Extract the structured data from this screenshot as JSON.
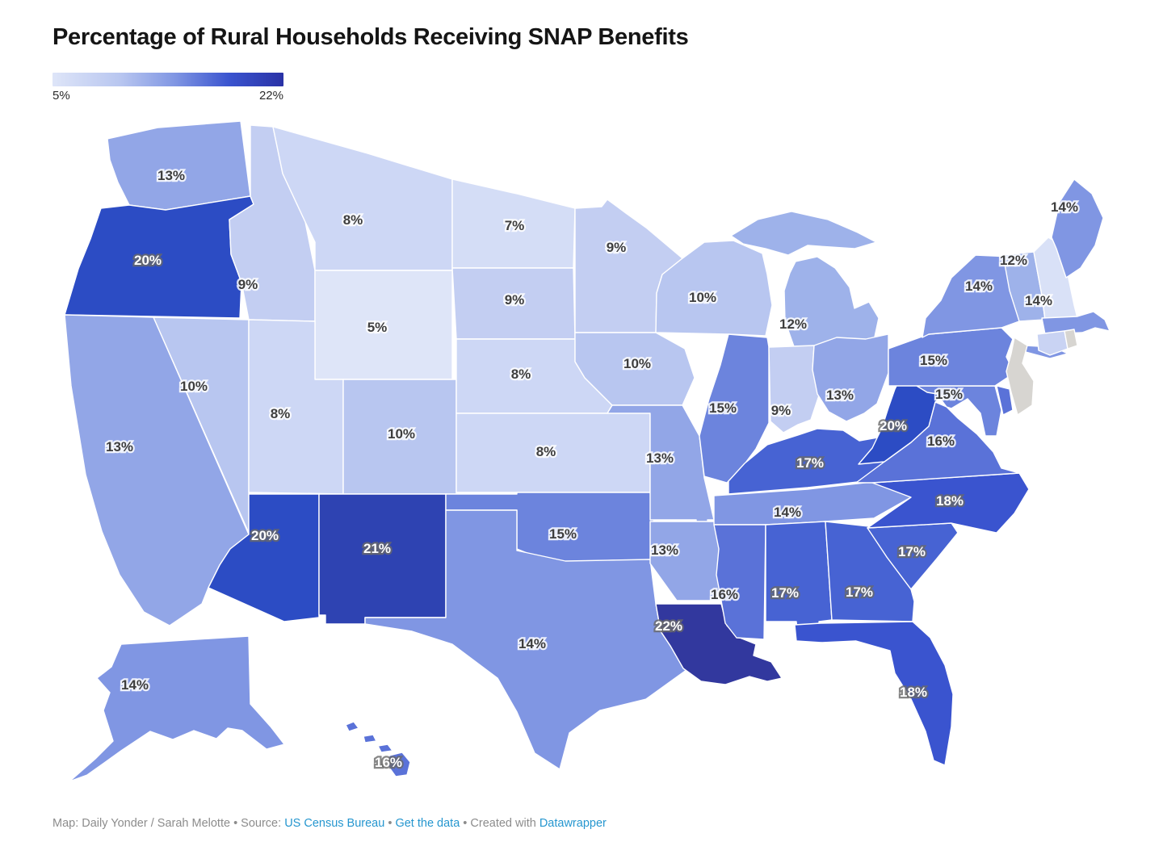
{
  "title": "Percentage of Rural Households Receiving SNAP Benefits",
  "legend": {
    "min_label": "5%",
    "max_label": "22%"
  },
  "footer": {
    "prefix": "Map: Daily Yonder / Sarah Melotte • Source: ",
    "source_link": "US Census Bureau",
    "sep1": " • ",
    "data_link": "Get the data",
    "sep2": " • Created with ",
    "tool_link": "Datawrapper"
  },
  "chart_data": {
    "type": "choropleth_map",
    "title": "Percentage of Rural Households Receiving SNAP Benefits",
    "unit": "%",
    "scale": {
      "min": 5,
      "max": 22,
      "min_label": "5%",
      "max_label": "22%",
      "no_data_color": "#d7d5d1",
      "legend_gradient": [
        {
          "v": 5,
          "color": "#dee5f8"
        },
        {
          "v": 10,
          "color": "#b8c6f0"
        },
        {
          "v": 14,
          "color": "#8096e3"
        },
        {
          "v": 18,
          "color": "#3a54cf"
        },
        {
          "v": 22,
          "color": "#2a32a6"
        }
      ],
      "value_colors": [
        {
          "v": 5,
          "color": "#dee5f8"
        },
        {
          "v": 7,
          "color": "#d4ddf6"
        },
        {
          "v": 8,
          "color": "#cdd7f5"
        },
        {
          "v": 9,
          "color": "#c3cef2"
        },
        {
          "v": 10,
          "color": "#b8c6f0"
        },
        {
          "v": 12,
          "color": "#9eb2ea"
        },
        {
          "v": 13,
          "color": "#92a6e7"
        },
        {
          "v": 14,
          "color": "#8096e3"
        },
        {
          "v": 15,
          "color": "#6c84dd"
        },
        {
          "v": 16,
          "color": "#5a72d8"
        },
        {
          "v": 17,
          "color": "#4763d3"
        },
        {
          "v": 18,
          "color": "#3a54cf"
        },
        {
          "v": 20,
          "color": "#2c4cc4"
        },
        {
          "v": 21,
          "color": "#2e43b2"
        },
        {
          "v": 22,
          "color": "#32389e"
        }
      ]
    },
    "states": [
      {
        "id": "WA",
        "name": "Washington",
        "value": 13,
        "label": "13%",
        "light": false
      },
      {
        "id": "OR",
        "name": "Oregon",
        "value": 20,
        "label": "20%",
        "light": true
      },
      {
        "id": "CA",
        "name": "California",
        "value": 13,
        "label": "13%",
        "light": false
      },
      {
        "id": "NV",
        "name": "Nevada",
        "value": 10,
        "label": "10%",
        "light": false
      },
      {
        "id": "ID",
        "name": "Idaho",
        "value": 9,
        "label": "9%",
        "light": false
      },
      {
        "id": "MT",
        "name": "Montana",
        "value": 8,
        "label": "8%",
        "light": false
      },
      {
        "id": "WY",
        "name": "Wyoming",
        "value": 5,
        "label": "5%",
        "light": false
      },
      {
        "id": "UT",
        "name": "Utah",
        "value": 8,
        "label": "8%",
        "light": false
      },
      {
        "id": "CO",
        "name": "Colorado",
        "value": 10,
        "label": "10%",
        "light": false
      },
      {
        "id": "AZ",
        "name": "Arizona",
        "value": 20,
        "label": "20%",
        "light": true
      },
      {
        "id": "NM",
        "name": "New Mexico",
        "value": 21,
        "label": "21%",
        "light": true
      },
      {
        "id": "ND",
        "name": "North Dakota",
        "value": 7,
        "label": "7%",
        "light": false
      },
      {
        "id": "SD",
        "name": "South Dakota",
        "value": 9,
        "label": "9%",
        "light": false
      },
      {
        "id": "NE",
        "name": "Nebraska",
        "value": 8,
        "label": "8%",
        "light": false
      },
      {
        "id": "KS",
        "name": "Kansas",
        "value": 8,
        "label": "8%",
        "light": false
      },
      {
        "id": "OK",
        "name": "Oklahoma",
        "value": 15,
        "label": "15%",
        "light": false
      },
      {
        "id": "TX",
        "name": "Texas",
        "value": 14,
        "label": "14%",
        "light": false
      },
      {
        "id": "MN",
        "name": "Minnesota",
        "value": 9,
        "label": "9%",
        "light": false
      },
      {
        "id": "IA",
        "name": "Iowa",
        "value": 10,
        "label": "10%",
        "light": false
      },
      {
        "id": "MO",
        "name": "Missouri",
        "value": 13,
        "label": "13%",
        "light": false
      },
      {
        "id": "AR",
        "name": "Arkansas",
        "value": 13,
        "label": "13%",
        "light": false
      },
      {
        "id": "LA",
        "name": "Louisiana",
        "value": 22,
        "label": "22%",
        "light": true
      },
      {
        "id": "WI",
        "name": "Wisconsin",
        "value": 10,
        "label": "10%",
        "light": false
      },
      {
        "id": "IL",
        "name": "Illinois",
        "value": 15,
        "label": "15%",
        "light": false
      },
      {
        "id": "MI",
        "name": "Michigan",
        "value": 12,
        "label": "12%",
        "light": false
      },
      {
        "id": "IN",
        "name": "Indiana",
        "value": 9,
        "label": "9%",
        "light": false
      },
      {
        "id": "OH",
        "name": "Ohio",
        "value": 13,
        "label": "13%",
        "light": false
      },
      {
        "id": "KY",
        "name": "Kentucky",
        "value": 17,
        "label": "17%",
        "light": true
      },
      {
        "id": "TN",
        "name": "Tennessee",
        "value": 14,
        "label": "14%",
        "light": false
      },
      {
        "id": "MS",
        "name": "Mississippi",
        "value": 16,
        "label": "16%",
        "light": false
      },
      {
        "id": "AL",
        "name": "Alabama",
        "value": 17,
        "label": "17%",
        "light": true
      },
      {
        "id": "GA",
        "name": "Georgia",
        "value": 17,
        "label": "17%",
        "light": true
      },
      {
        "id": "FL",
        "name": "Florida",
        "value": 18,
        "label": "18%",
        "light": true
      },
      {
        "id": "SC",
        "name": "South Carolina",
        "value": 17,
        "label": "17%",
        "light": true
      },
      {
        "id": "NC",
        "name": "North Carolina",
        "value": 18,
        "label": "18%",
        "light": true
      },
      {
        "id": "VA",
        "name": "Virginia",
        "value": 16,
        "label": "16%",
        "light": false
      },
      {
        "id": "WV",
        "name": "West Virginia",
        "value": 20,
        "label": "20%",
        "light": true
      },
      {
        "id": "MD",
        "name": "Maryland",
        "value": 15,
        "label": "15%",
        "light": false
      },
      {
        "id": "DE",
        "name": "Delaware",
        "value": null,
        "label": "",
        "light": false,
        "fill": "#5a72d8"
      },
      {
        "id": "PA",
        "name": "Pennsylvania",
        "value": 15,
        "label": "15%",
        "light": false
      },
      {
        "id": "NY",
        "name": "New York",
        "value": 14,
        "label": "14%",
        "light": false
      },
      {
        "id": "NJ",
        "name": "New Jersey",
        "value": null,
        "label": "",
        "light": false,
        "fill": "#d7d5d1"
      },
      {
        "id": "VT",
        "name": "Vermont",
        "value": 12,
        "label": "12%",
        "light": false
      },
      {
        "id": "NH",
        "name": "New Hampshire",
        "value": null,
        "label": "",
        "light": false,
        "fill": "#d9e1f7"
      },
      {
        "id": "ME",
        "name": "Maine",
        "value": 14,
        "label": "14%",
        "light": false
      },
      {
        "id": "MA",
        "name": "Massachusetts",
        "value": 14,
        "label": "14%",
        "light": false
      },
      {
        "id": "CT",
        "name": "Connecticut",
        "value": null,
        "label": "",
        "light": false,
        "fill": "#c9d3f3"
      },
      {
        "id": "RI",
        "name": "Rhode Island",
        "value": null,
        "label": "",
        "light": false,
        "fill": "#d7d5d1"
      },
      {
        "id": "AK",
        "name": "Alaska",
        "value": 14,
        "label": "14%",
        "light": false
      },
      {
        "id": "HI",
        "name": "Hawaii",
        "value": 16,
        "label": "16%",
        "light": true
      }
    ]
  }
}
